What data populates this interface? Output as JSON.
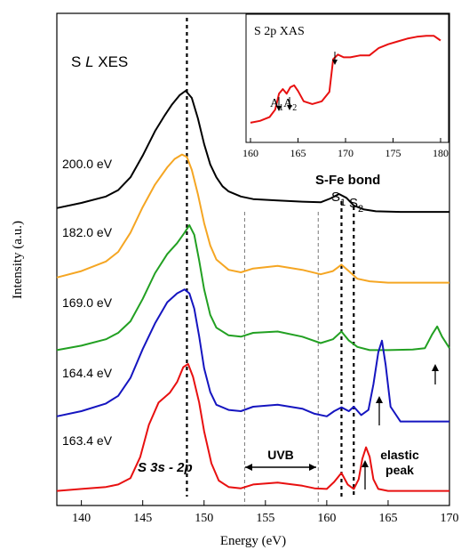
{
  "chart_data": [
    {
      "type": "line",
      "title": "S L XES",
      "xlabel": "Energy (eV)",
      "ylabel": "Intensity (a.u.)",
      "xlim": [
        138,
        170
      ],
      "xticks": [
        140,
        145,
        150,
        155,
        160,
        165,
        170
      ],
      "y_ticks_shown": false,
      "grid": false,
      "legend": "none",
      "series": [
        {
          "name": "200.0 eV",
          "color": "#000000",
          "offset": 4,
          "x": [
            138.0,
            140.0,
            142.0,
            143.0,
            144.0,
            145.0,
            146.0,
            146.8,
            147.4,
            148.0,
            148.5,
            149.0,
            149.5,
            150.0,
            150.5,
            151.0,
            151.5,
            152.0,
            153.0,
            154.0,
            156.0,
            158.0,
            159.5,
            160.3,
            161.0,
            161.6,
            162.2,
            163.0,
            164.0,
            166.0,
            168.0,
            170.0
          ],
          "y": [
            0.1,
            0.18,
            0.28,
            0.38,
            0.58,
            0.92,
            1.3,
            1.55,
            1.72,
            1.86,
            1.93,
            1.82,
            1.5,
            1.1,
            0.78,
            0.58,
            0.44,
            0.36,
            0.28,
            0.24,
            0.22,
            0.2,
            0.19,
            0.25,
            0.32,
            0.26,
            0.14,
            0.08,
            0.05,
            0.04,
            0.04,
            0.04
          ]
        },
        {
          "name": "182.0 eV",
          "color": "#F5A623",
          "offset": 3,
          "x": [
            138.0,
            140.0,
            142.0,
            143.0,
            144.0,
            145.0,
            146.0,
            147.0,
            147.6,
            148.2,
            148.6,
            149.0,
            149.5,
            150.0,
            150.5,
            151.0,
            152.0,
            153.0,
            154.0,
            156.0,
            158.0,
            159.5,
            160.5,
            161.2,
            161.8,
            162.5,
            163.5,
            165.0,
            170.0
          ],
          "y": [
            0.1,
            0.2,
            0.35,
            0.5,
            0.8,
            1.2,
            1.55,
            1.82,
            1.95,
            2.02,
            1.98,
            1.78,
            1.4,
            0.95,
            0.6,
            0.38,
            0.22,
            0.18,
            0.24,
            0.28,
            0.22,
            0.15,
            0.2,
            0.3,
            0.2,
            0.08,
            0.04,
            0.02,
            0.02
          ]
        },
        {
          "name": "169.0 eV",
          "color": "#22A022",
          "offset": 2,
          "x": [
            138.0,
            140.0,
            142.0,
            143.0,
            144.0,
            145.0,
            146.0,
            147.0,
            147.8,
            148.4,
            148.8,
            149.2,
            149.6,
            150.0,
            150.5,
            151.0,
            152.0,
            153.0,
            154.0,
            156.0,
            158.0,
            159.5,
            160.5,
            161.2,
            161.8,
            162.5,
            163.5,
            165.0,
            167.0,
            168.0,
            168.6,
            169.0,
            169.4,
            170.0
          ],
          "y": [
            0.05,
            0.12,
            0.22,
            0.32,
            0.5,
            0.85,
            1.25,
            1.55,
            1.72,
            1.88,
            2.0,
            1.85,
            1.45,
            1.0,
            0.6,
            0.4,
            0.28,
            0.26,
            0.32,
            0.34,
            0.26,
            0.16,
            0.22,
            0.34,
            0.2,
            0.1,
            0.05,
            0.05,
            0.06,
            0.08,
            0.3,
            0.42,
            0.26,
            0.08
          ]
        },
        {
          "name": "164.4 eV",
          "color": "#1515C0",
          "offset": 1,
          "x": [
            138.0,
            140.0,
            142.0,
            143.0,
            144.0,
            145.0,
            146.0,
            147.0,
            147.8,
            148.4,
            148.8,
            149.2,
            149.6,
            150.0,
            150.5,
            151.0,
            152.0,
            153.0,
            154.0,
            156.0,
            158.0,
            159.0,
            160.0,
            160.6,
            161.2,
            161.8,
            162.2,
            162.8,
            163.4,
            163.8,
            164.2,
            164.5,
            164.8,
            165.2,
            166.0,
            168.0,
            170.0
          ],
          "y": [
            0.1,
            0.18,
            0.3,
            0.42,
            0.7,
            1.15,
            1.55,
            1.88,
            2.02,
            2.08,
            2.02,
            1.78,
            1.35,
            0.85,
            0.48,
            0.28,
            0.2,
            0.18,
            0.25,
            0.28,
            0.22,
            0.14,
            0.1,
            0.18,
            0.24,
            0.18,
            0.25,
            0.12,
            0.2,
            0.6,
            1.1,
            1.28,
            0.9,
            0.25,
            0.02,
            0.02,
            0.02
          ]
        },
        {
          "name": "163.4 eV",
          "color": "#E81010",
          "offset": 0,
          "x": [
            138.0,
            140.0,
            142.0,
            143.0,
            144.0,
            144.8,
            145.5,
            146.3,
            147.2,
            147.8,
            148.3,
            148.7,
            149.1,
            149.6,
            150.0,
            150.6,
            151.2,
            152.0,
            153.0,
            154.0,
            156.0,
            158.0,
            159.0,
            160.0,
            160.6,
            161.2,
            161.7,
            162.2,
            162.6,
            162.9,
            163.2,
            163.5,
            163.8,
            164.2,
            165.0,
            167.0,
            170.0
          ],
          "y": [
            0.02,
            0.05,
            0.08,
            0.12,
            0.22,
            0.55,
            1.05,
            1.4,
            1.55,
            1.72,
            1.95,
            2.0,
            1.8,
            1.4,
            0.95,
            0.45,
            0.18,
            0.08,
            0.06,
            0.12,
            0.15,
            0.1,
            0.06,
            0.05,
            0.16,
            0.3,
            0.12,
            0.05,
            0.2,
            0.52,
            0.7,
            0.55,
            0.2,
            0.05,
            0.02,
            0.02,
            0.02
          ]
        }
      ],
      "vlines_dashed_thick": [
        148.6,
        161.2,
        162.2
      ],
      "vlines_dashed_thin": [
        153.3,
        159.3
      ],
      "annotations": {
        "sfe_bond": "S-Fe bond",
        "s1": "S",
        "s1_sub": "1",
        "s2": "S",
        "s2_sub": "2",
        "uvb": "UVB",
        "s3s2p": "S 3s - 2p",
        "elastic_line1": "elastic",
        "elastic_line2": "peak"
      }
    },
    {
      "type": "line",
      "title": "S 2p XAS",
      "xlim": [
        160,
        180
      ],
      "xticks": [
        160,
        165,
        170,
        175,
        180
      ],
      "y_ticks_shown": false,
      "series": [
        {
          "color": "#E81010",
          "x": [
            160.0,
            161.0,
            162.0,
            162.6,
            163.0,
            163.4,
            163.8,
            164.2,
            164.6,
            165.0,
            165.6,
            166.5,
            167.5,
            168.3,
            168.7,
            169.2,
            169.8,
            170.5,
            171.5,
            172.5,
            173.5,
            174.5,
            175.5,
            176.5,
            177.5,
            178.5,
            179.3,
            180.0
          ],
          "y": [
            0.02,
            0.04,
            0.08,
            0.16,
            0.33,
            0.38,
            0.33,
            0.4,
            0.42,
            0.36,
            0.25,
            0.22,
            0.25,
            0.35,
            0.7,
            0.75,
            0.72,
            0.72,
            0.74,
            0.74,
            0.82,
            0.86,
            0.89,
            0.92,
            0.94,
            0.95,
            0.95,
            0.9
          ]
        }
      ],
      "annotations": {
        "a1": "A",
        "a1_sub": "1",
        "a2": "A",
        "a2_sub": "2"
      }
    }
  ]
}
